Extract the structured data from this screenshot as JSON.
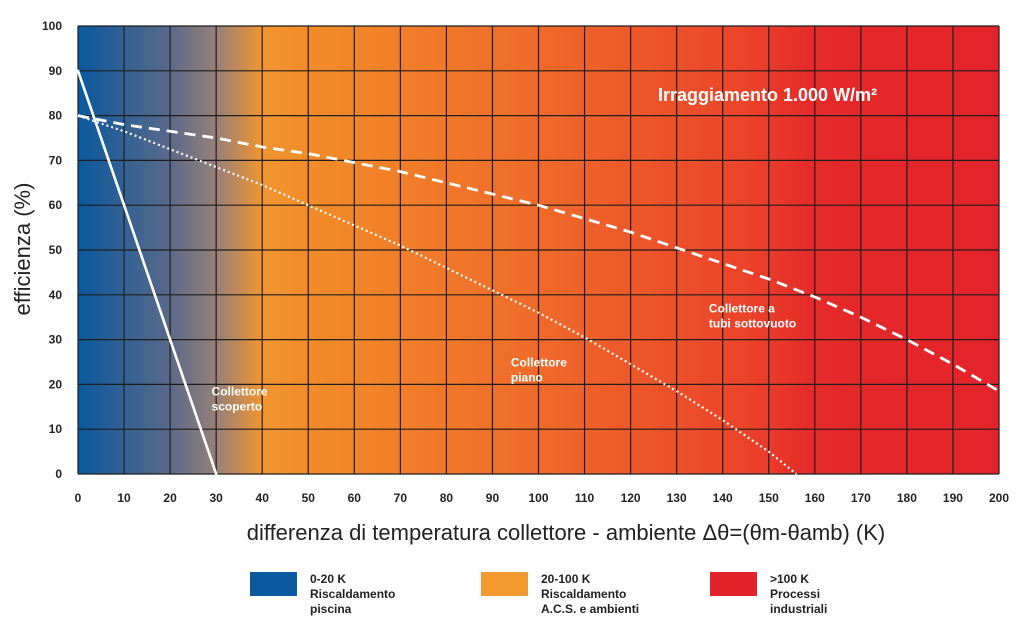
{
  "chart_data": {
    "type": "line",
    "title": "Irraggiamento 1.000 W/m²",
    "xlabel": "differenza di temperatura collettore - ambiente Δθ=(θm-θamb) (K)",
    "ylabel": "efficienza (%)",
    "xlim": [
      0,
      200
    ],
    "ylim": [
      0,
      100
    ],
    "x_ticks": [
      0,
      10,
      20,
      30,
      40,
      50,
      60,
      70,
      80,
      90,
      100,
      110,
      120,
      130,
      140,
      150,
      160,
      170,
      180,
      190,
      200
    ],
    "y_ticks": [
      0,
      10,
      20,
      30,
      40,
      50,
      60,
      70,
      80,
      90,
      100
    ],
    "grid": true,
    "series": [
      {
        "name": "Collettore scoperto",
        "style": "solid",
        "x": [
          0,
          30
        ],
        "y": [
          90,
          0
        ]
      },
      {
        "name": "Collettore piano",
        "style": "dotted",
        "x": [
          0,
          10,
          20,
          30,
          40,
          50,
          60,
          70,
          80,
          90,
          100,
          110,
          120,
          130,
          140,
          150,
          156
        ],
        "y": [
          80,
          76.5,
          72.5,
          68.5,
          64.5,
          60,
          55.5,
          51,
          46,
          41,
          36,
          30.5,
          24.5,
          18.5,
          12,
          5,
          0
        ]
      },
      {
        "name": "Collettore a tubi sottovuoto",
        "style": "dashed",
        "x": [
          0,
          10,
          20,
          30,
          40,
          50,
          60,
          70,
          80,
          90,
          100,
          110,
          120,
          130,
          140,
          150,
          160,
          170,
          180,
          190,
          200
        ],
        "y": [
          80,
          78,
          76.5,
          75,
          73,
          71.5,
          69.5,
          67.5,
          65,
          62.5,
          60,
          57,
          54,
          50.5,
          47,
          43.5,
          39.5,
          35,
          30,
          24.5,
          18.5
        ]
      }
    ],
    "annotations": [
      {
        "lines": [
          "Collettore",
          "scoperto"
        ],
        "x": 29,
        "y": 17.5
      },
      {
        "lines": [
          "Collettore",
          "piano"
        ],
        "x": 94,
        "y": 24
      },
      {
        "lines": [
          "Collettore a",
          "tubi sottovuoto"
        ],
        "x": 137,
        "y": 36
      }
    ],
    "background_gradient": [
      {
        "x": 0,
        "color": "#0b5aa0"
      },
      {
        "x": 4,
        "color": "#1a5b99"
      },
      {
        "x": 20,
        "color": "#5a6a8a"
      },
      {
        "x": 30,
        "color": "#97807a"
      },
      {
        "x": 40,
        "color": "#f09530"
      },
      {
        "x": 50,
        "color": "#f28c28"
      },
      {
        "x": 100,
        "color": "#ef6a2a"
      },
      {
        "x": 145,
        "color": "#eb432a"
      },
      {
        "x": 160,
        "color": "#e52a2a"
      },
      {
        "x": 200,
        "color": "#e3232a"
      }
    ],
    "legend": [
      {
        "color": "#0b5aa0",
        "lines": [
          "0-20 K",
          "Riscaldamento",
          "piscina"
        ]
      },
      {
        "color": "#f29a2e",
        "lines": [
          "20-100 K",
          "Riscaldamento",
          "A.C.S. e ambienti"
        ]
      },
      {
        "color": "#e3232a",
        "lines": [
          ">100 K",
          "Processi",
          "industriali"
        ]
      }
    ]
  }
}
